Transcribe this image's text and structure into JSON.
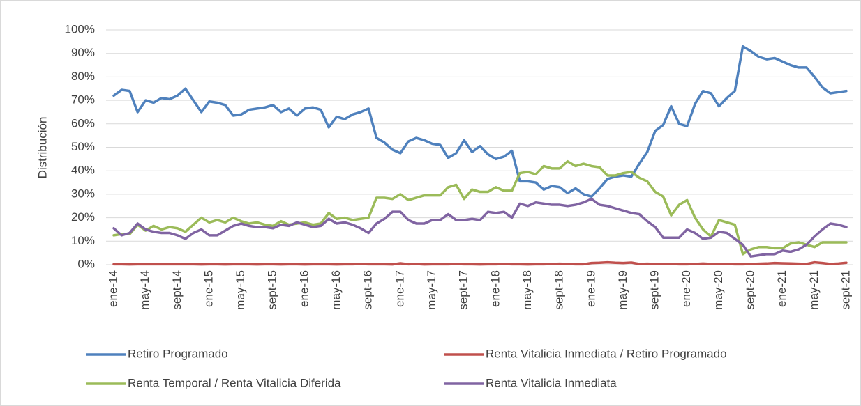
{
  "chart_data": {
    "type": "line",
    "y_label": "Distribución",
    "categories": [
      "ene-14",
      null,
      null,
      null,
      "may-14",
      null,
      null,
      null,
      "sept-14",
      null,
      null,
      null,
      "ene-15",
      null,
      null,
      null,
      "may-15",
      null,
      null,
      null,
      "sept-15",
      null,
      null,
      null,
      "ene-16",
      null,
      null,
      null,
      "may-16",
      null,
      null,
      null,
      "sept-16",
      null,
      null,
      null,
      "ene-17",
      null,
      null,
      null,
      "may-17",
      null,
      null,
      null,
      "sept-17",
      null,
      null,
      null,
      "ene-18",
      null,
      null,
      null,
      "may-18",
      null,
      null,
      null,
      "sept-18",
      null,
      null,
      null,
      "ene-19",
      null,
      null,
      null,
      "may-19",
      null,
      null,
      null,
      "sept-19",
      null,
      null,
      null,
      "ene-20",
      null,
      null,
      null,
      "may-20",
      null,
      null,
      null,
      "sept-20",
      null,
      null,
      null,
      "ene-21",
      null,
      null,
      null,
      "may-21",
      null,
      null,
      null,
      "sept-21"
    ],
    "series": [
      {
        "name": "Retiro Programado",
        "color": "#4f81bd",
        "values": [
          72,
          74.5,
          74,
          65,
          70,
          69,
          71,
          70.5,
          72,
          75,
          70,
          65,
          69.5,
          69,
          68,
          63.5,
          64,
          66,
          66.5,
          67,
          68,
          65,
          66.5,
          63.5,
          66.5,
          67,
          66,
          58.5,
          63,
          62,
          64,
          65,
          66.5,
          54,
          52,
          49,
          47.5,
          52.5,
          54,
          53,
          51.5,
          51,
          45.5,
          47.5,
          53,
          48,
          50.5,
          47,
          45,
          46,
          48.5,
          35.5,
          35.5,
          35,
          32,
          33.5,
          33,
          30.5,
          32.5,
          30,
          29,
          32.5,
          36.5,
          37.5,
          38,
          37.5,
          43,
          48,
          57,
          59.5,
          67.5,
          60,
          59,
          68.5,
          74,
          73,
          67.5,
          71,
          74,
          93,
          91,
          88.5,
          87.5,
          88,
          86.5,
          85,
          84,
          84,
          80,
          75.5,
          73,
          73.5,
          74
        ]
      },
      {
        "name": "Renta Vitalicia Inmediata / Retiro Programado",
        "color": "#c0504d",
        "values": [
          0.2,
          0.2,
          0.1,
          0.2,
          0.2,
          0.2,
          0.2,
          0.2,
          0.2,
          0.2,
          0.2,
          0.1,
          0.2,
          0.2,
          0.1,
          0.2,
          0.2,
          0.2,
          0.1,
          0.2,
          0.2,
          0.1,
          0.2,
          0.2,
          0.1,
          0.2,
          0.2,
          0.2,
          0.1,
          0.2,
          0.2,
          0.3,
          0.2,
          0.2,
          0.2,
          0.1,
          0.6,
          0.2,
          0.3,
          0.1,
          0.2,
          0.2,
          0.2,
          0.3,
          0.2,
          0.2,
          0.1,
          0.2,
          0.2,
          0.3,
          0.2,
          0.2,
          0.1,
          0.2,
          0.2,
          0.3,
          0.4,
          0.3,
          0.2,
          0.2,
          0.7,
          0.8,
          1,
          0.8,
          0.7,
          0.9,
          0.3,
          0.4,
          0.3,
          0.3,
          0.3,
          0.2,
          0.2,
          0.3,
          0.5,
          0.3,
          0.3,
          0.3,
          0.2,
          0.2,
          0.3,
          0.4,
          0.5,
          0.7,
          0.6,
          0.5,
          0.4,
          0.3,
          1,
          0.7,
          0.3,
          0.5,
          0.8
        ]
      },
      {
        "name": "Renta Temporal / Renta Vitalicia Diferida",
        "color": "#9bbb59",
        "values": [
          12.5,
          13,
          13,
          17,
          14.5,
          16.5,
          15,
          16,
          15.5,
          14,
          17,
          20,
          18,
          19,
          18,
          20,
          18.5,
          17.5,
          18,
          17,
          16.5,
          18.5,
          17,
          17.5,
          18,
          17,
          17.5,
          22,
          19.5,
          20,
          19,
          19.5,
          20,
          28.5,
          28.5,
          28,
          30,
          27.5,
          28.5,
          29.5,
          29.5,
          29.5,
          33,
          34,
          28,
          32,
          31,
          31,
          33,
          31.5,
          31.5,
          39,
          39.5,
          38.5,
          42,
          41,
          41,
          44,
          42,
          43,
          42,
          41.5,
          38,
          38,
          39,
          39.5,
          37,
          35.5,
          31,
          29,
          21,
          25.5,
          27.5,
          20,
          15,
          12,
          19,
          18,
          17,
          4.5,
          6.5,
          7.5,
          7.5,
          7,
          7,
          9,
          9.5,
          8.5,
          7.5,
          9.5,
          9.5,
          9.5,
          9.5
        ]
      },
      {
        "name": "Renta Vitalicia Inmediata",
        "color": "#8064a2",
        "values": [
          15.5,
          12.5,
          13.5,
          17.5,
          15,
          14,
          13.5,
          13.5,
          12.5,
          11,
          13.5,
          15,
          12.5,
          12.5,
          14.5,
          16.5,
          17.5,
          16.5,
          16,
          16,
          15.5,
          17,
          16.5,
          18,
          17,
          16,
          16.5,
          19.5,
          17.5,
          18,
          17,
          15.5,
          13.5,
          17.5,
          19.5,
          22.5,
          22.5,
          19,
          17.5,
          17.5,
          19,
          19,
          21.5,
          19,
          19,
          19.5,
          19,
          22.5,
          22,
          22.5,
          20,
          26,
          25,
          26.5,
          26,
          25.5,
          25.5,
          25,
          25.5,
          26.5,
          28,
          25.5,
          25,
          24,
          23,
          22,
          21.5,
          18.5,
          16,
          11.5,
          11.5,
          11.5,
          15,
          13.5,
          11,
          11.5,
          14,
          13.5,
          11,
          8.5,
          3.5,
          4,
          4.5,
          4.5,
          6,
          5.5,
          6.5,
          8.5,
          12,
          15,
          17.5,
          17,
          16
        ]
      }
    ],
    "ylim": [
      0,
      100
    ],
    "yticks": [
      {
        "value": 0,
        "label": "0%"
      },
      {
        "value": 10,
        "label": "10%"
      },
      {
        "value": 20,
        "label": "20%"
      },
      {
        "value": 30,
        "label": "30%"
      },
      {
        "value": 40,
        "label": "40%"
      },
      {
        "value": 50,
        "label": "50%"
      },
      {
        "value": 60,
        "label": "60%"
      },
      {
        "value": 70,
        "label": "70%"
      },
      {
        "value": 80,
        "label": "80%"
      },
      {
        "value": 90,
        "label": "90%"
      },
      {
        "value": 100,
        "label": "100%"
      }
    ],
    "grid": true
  }
}
